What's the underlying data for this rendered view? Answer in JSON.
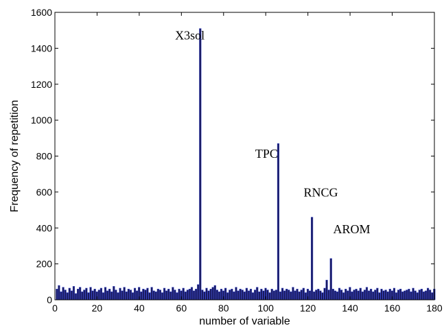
{
  "chart_data": {
    "type": "bar",
    "title": "",
    "xlabel": "number of variable",
    "ylabel": "Frequency of repetition",
    "xlim": [
      0,
      180
    ],
    "ylim": [
      0,
      1600
    ],
    "xticks": [
      0,
      20,
      40,
      60,
      80,
      100,
      120,
      140,
      160,
      180
    ],
    "yticks": [
      0,
      200,
      400,
      600,
      800,
      1000,
      1200,
      1400,
      1600
    ],
    "grid": false,
    "bar_color": "#1a1a5e",
    "bar_edge_color": "#3344cc",
    "x": [
      1,
      2,
      3,
      4,
      5,
      6,
      7,
      8,
      9,
      10,
      11,
      12,
      13,
      14,
      15,
      16,
      17,
      18,
      19,
      20,
      21,
      22,
      23,
      24,
      25,
      26,
      27,
      28,
      29,
      30,
      31,
      32,
      33,
      34,
      35,
      36,
      37,
      38,
      39,
      40,
      41,
      42,
      43,
      44,
      45,
      46,
      47,
      48,
      49,
      50,
      51,
      52,
      53,
      54,
      55,
      56,
      57,
      58,
      59,
      60,
      61,
      62,
      63,
      64,
      65,
      66,
      67,
      68,
      69,
      70,
      71,
      72,
      73,
      74,
      75,
      76,
      77,
      78,
      79,
      80,
      81,
      82,
      83,
      84,
      85,
      86,
      87,
      88,
      89,
      90,
      91,
      92,
      93,
      94,
      95,
      96,
      97,
      98,
      99,
      100,
      101,
      102,
      103,
      104,
      105,
      106,
      107,
      108,
      109,
      110,
      111,
      112,
      113,
      114,
      115,
      116,
      117,
      118,
      119,
      120,
      121,
      122,
      123,
      124,
      125,
      126,
      127,
      128,
      129,
      130,
      131,
      132,
      133,
      134,
      135,
      136,
      137,
      138,
      139,
      140,
      141,
      142,
      143,
      144,
      145,
      146,
      147,
      148,
      149,
      150,
      151,
      152,
      153,
      154,
      155,
      156,
      157,
      158,
      159,
      160,
      161,
      162,
      163,
      164,
      165,
      166,
      167,
      168,
      169,
      170,
      171,
      172,
      173,
      174,
      175,
      176,
      177,
      178,
      179,
      180
    ],
    "values": [
      60,
      80,
      45,
      70,
      55,
      40,
      65,
      50,
      75,
      35,
      60,
      70,
      45,
      55,
      65,
      40,
      70,
      50,
      60,
      45,
      55,
      65,
      40,
      70,
      50,
      60,
      45,
      75,
      55,
      40,
      65,
      50,
      70,
      45,
      60,
      55,
      40,
      65,
      50,
      70,
      45,
      60,
      55,
      65,
      40,
      70,
      50,
      45,
      60,
      55,
      40,
      65,
      50,
      60,
      45,
      70,
      55,
      40,
      60,
      50,
      65,
      45,
      55,
      60,
      70,
      50,
      60,
      85,
      1510,
      55,
      45,
      65,
      50,
      60,
      70,
      80,
      55,
      45,
      60,
      50,
      65,
      40,
      55,
      60,
      45,
      70,
      50,
      60,
      55,
      45,
      65,
      50,
      60,
      40,
      55,
      70,
      45,
      60,
      50,
      65,
      55,
      40,
      60,
      50,
      55,
      870,
      45,
      65,
      50,
      60,
      55,
      45,
      70,
      50,
      60,
      45,
      55,
      65,
      40,
      60,
      50,
      460,
      45,
      55,
      60,
      50,
      40,
      65,
      110,
      55,
      230,
      60,
      50,
      45,
      65,
      55,
      40,
      60,
      50,
      70,
      45,
      55,
      60,
      50,
      65,
      45,
      55,
      70,
      50,
      60,
      45,
      55,
      65,
      40,
      60,
      50,
      55,
      45,
      60,
      50,
      65,
      40,
      55,
      60,
      45,
      50,
      55,
      60,
      45,
      65,
      50,
      40,
      55,
      60,
      45,
      50,
      65,
      55,
      40,
      60
    ],
    "annotations": [
      {
        "text": "X3sol",
        "x": 57,
        "y": 1450
      },
      {
        "text": "TPC",
        "x": 95,
        "y": 790
      },
      {
        "text": "RNCG",
        "x": 118,
        "y": 575
      },
      {
        "text": "AROM",
        "x": 132,
        "y": 370
      }
    ]
  }
}
